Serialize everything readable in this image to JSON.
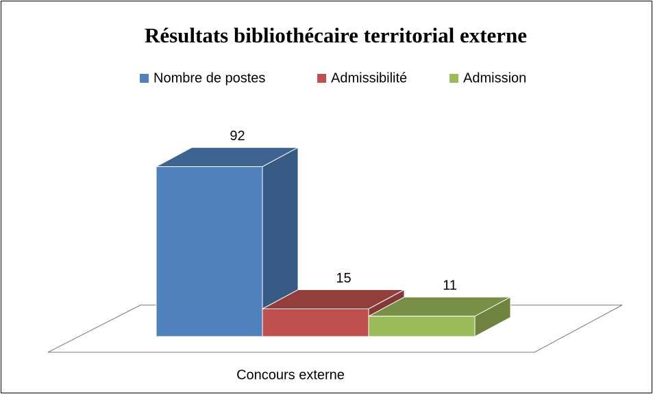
{
  "chart_data": {
    "type": "bar3d",
    "title": "Résultats bibliothécaire territorial externe",
    "categories": [
      "Concours externe"
    ],
    "series": [
      {
        "name": "Nombre de postes",
        "color": "#4f81bd",
        "values": [
          92
        ]
      },
      {
        "name": "Admissibilité",
        "color": "#c0504d",
        "values": [
          15
        ]
      },
      {
        "name": "Admission",
        "color": "#9bbb59",
        "values": [
          11
        ]
      }
    ],
    "legend": "top"
  }
}
